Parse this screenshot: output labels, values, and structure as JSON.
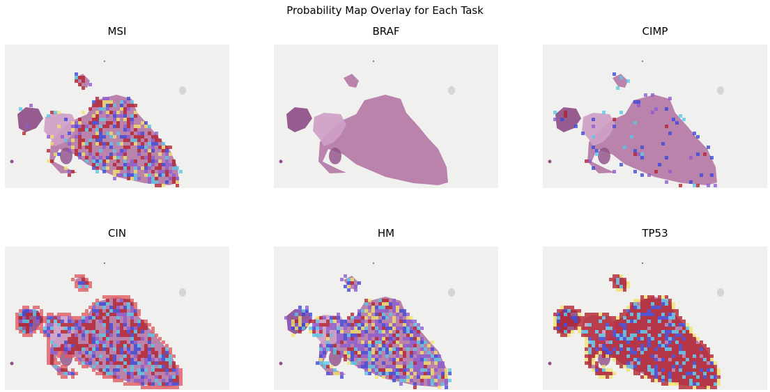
{
  "figure": {
    "title": "Probability Map Overlay for Each Task"
  },
  "panels": [
    {
      "title": "MSI",
      "overlay": "sparse-center",
      "density": 0.55,
      "edge": 0.15
    },
    {
      "title": "BRAF",
      "overlay": "none",
      "density": 0.0,
      "edge": 0.0
    },
    {
      "title": "CIMP",
      "overlay": "sparse-blue",
      "density": 0.08,
      "edge": 0.25
    },
    {
      "title": "CIN",
      "overlay": "mixed-red",
      "density": 0.7,
      "edge": 0.9
    },
    {
      "title": "HM",
      "overlay": "mixed-cool",
      "density": 0.75,
      "edge": 0.3
    },
    {
      "title": "TP53",
      "overlay": "dense-red",
      "density": 0.95,
      "edge": 0.95
    }
  ],
  "colors": {
    "background": "#f0f1ef",
    "tissue": "#b57aa6",
    "tissue_light": "#cf9fc6",
    "tissue_dark": "#8f4f87",
    "overlay_red": "#b3202a",
    "overlay_blue": "#3b46d8",
    "overlay_cyan": "#59c7e6",
    "overlay_yellow": "#f2e36a",
    "overlay_purple": "#8c5bd0"
  }
}
